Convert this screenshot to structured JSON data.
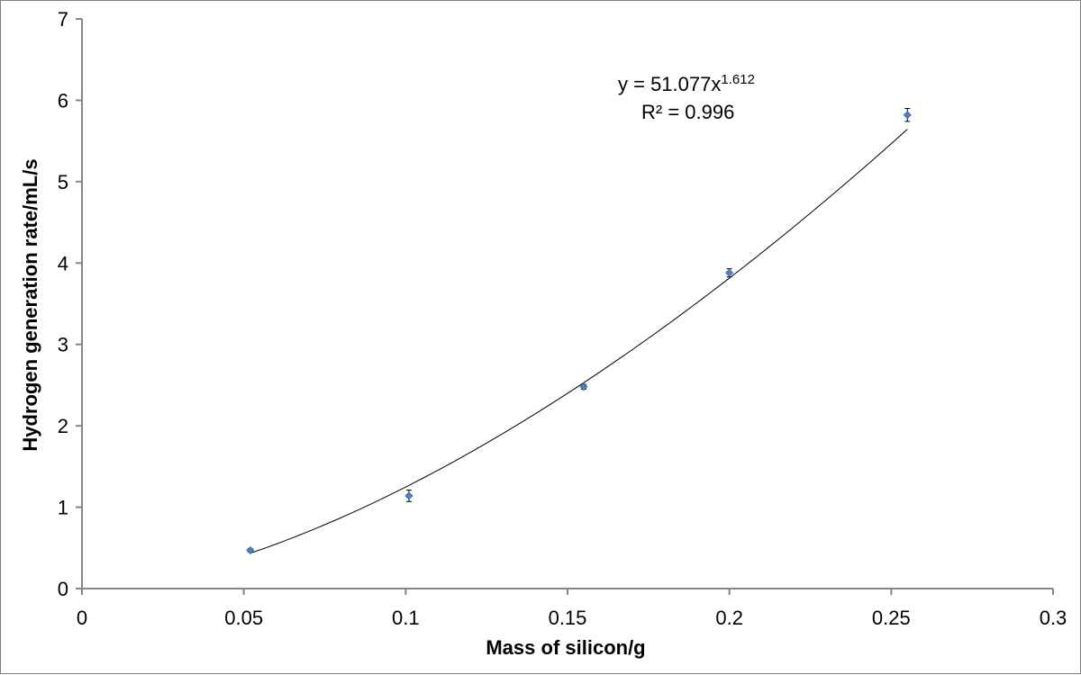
{
  "chart_data": {
    "type": "scatter",
    "title": "",
    "xlabel": "Mass of silicon/g",
    "ylabel": "Hydrogen generation rate/mL/s",
    "xlim": [
      0,
      0.3
    ],
    "ylim": [
      0,
      7
    ],
    "x_ticks": [
      0,
      0.05,
      0.1,
      0.15,
      0.2,
      0.25,
      0.3
    ],
    "x_tick_labels": [
      "0",
      "0.05",
      "0.1",
      "0.15",
      "0.2",
      "0.25",
      "0.3"
    ],
    "y_ticks": [
      0,
      1,
      2,
      3,
      4,
      5,
      6,
      7
    ],
    "y_tick_labels": [
      "0",
      "1",
      "2",
      "3",
      "4",
      "5",
      "6",
      "7"
    ],
    "grid": false,
    "legend": "none",
    "series": [
      {
        "name": "Hydrogen generation rate",
        "color": "#4f81bd",
        "marker": "diamond",
        "x": [
          0.052,
          0.101,
          0.155,
          0.2,
          0.255
        ],
        "y": [
          0.47,
          1.14,
          2.48,
          3.88,
          5.82
        ],
        "y_error": [
          0.02,
          0.07,
          0.03,
          0.05,
          0.08
        ]
      }
    ],
    "trendline": {
      "type": "power",
      "a": 51.077,
      "b": 1.612,
      "x_range": [
        0.052,
        0.255
      ],
      "color": "#000000"
    },
    "annotation": {
      "equation_prefix": "y = 51.077x",
      "equation_exponent": "1.612",
      "r_squared": "R² = 0.996"
    }
  }
}
